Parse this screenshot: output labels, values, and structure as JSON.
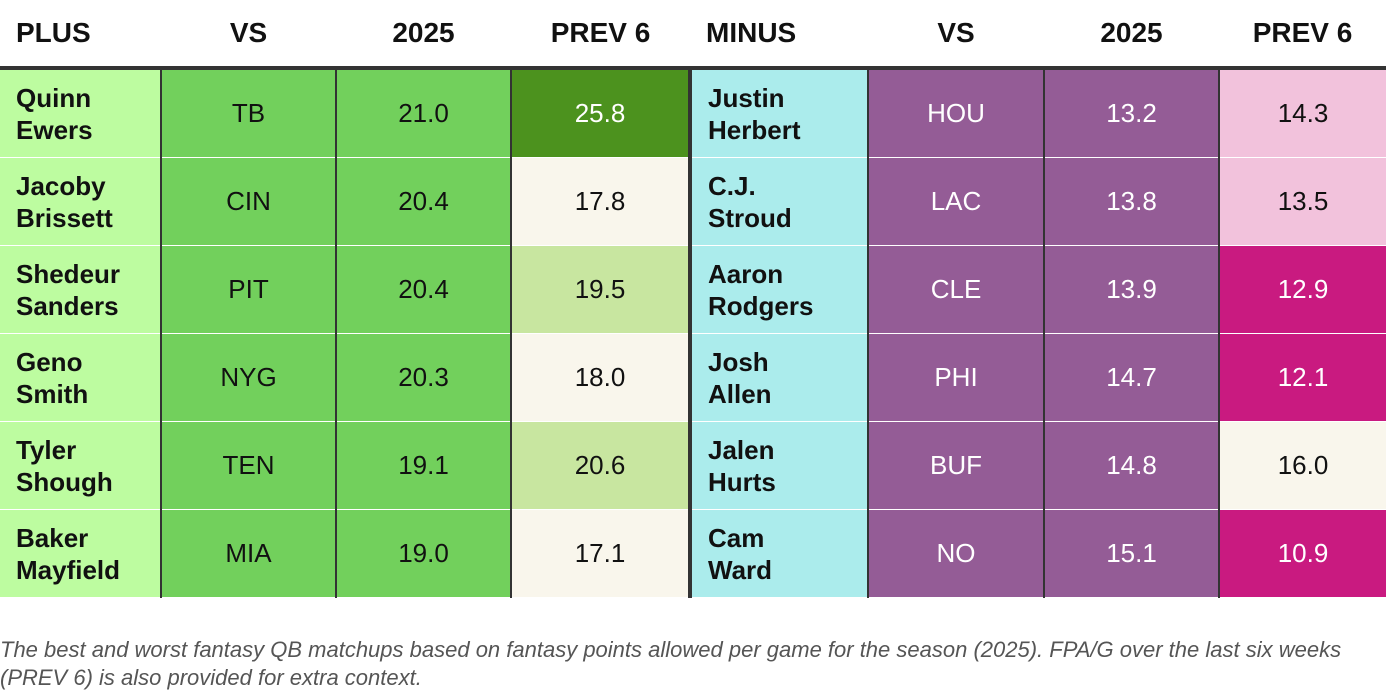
{
  "chart_data": {
    "type": "table",
    "headers": {
      "plus": [
        "PLUS",
        "VS",
        "2025",
        "PREV 6"
      ],
      "minus": [
        "MINUS",
        "VS",
        "2025",
        "PREV 6"
      ]
    },
    "rows": [
      {
        "plus": {
          "name_first": "Quinn",
          "name_last": "Ewers",
          "vs": "TB",
          "y2025": "21.0",
          "prev6": "25.8"
        },
        "minus": {
          "name_first": "Justin",
          "name_last": "Herbert",
          "vs": "HOU",
          "y2025": "13.2",
          "prev6": "14.3"
        }
      },
      {
        "plus": {
          "name_first": "Jacoby",
          "name_last": "Brissett",
          "vs": "CIN",
          "y2025": "20.4",
          "prev6": "17.8"
        },
        "minus": {
          "name_first": "C.J.",
          "name_last": "Stroud",
          "vs": "LAC",
          "y2025": "13.8",
          "prev6": "13.5"
        }
      },
      {
        "plus": {
          "name_first": "Shedeur",
          "name_last": "Sanders",
          "vs": "PIT",
          "y2025": "20.4",
          "prev6": "19.5"
        },
        "minus": {
          "name_first": "Aaron",
          "name_last": "Rodgers",
          "vs": "CLE",
          "y2025": "13.9",
          "prev6": "12.9"
        }
      },
      {
        "plus": {
          "name_first": "Geno",
          "name_last": "Smith",
          "vs": "NYG",
          "y2025": "20.3",
          "prev6": "18.0"
        },
        "minus": {
          "name_first": "Josh",
          "name_last": "Allen",
          "vs": "PHI",
          "y2025": "14.7",
          "prev6": "12.1"
        }
      },
      {
        "plus": {
          "name_first": "Tyler",
          "name_last": "Shough",
          "vs": "TEN",
          "y2025": "19.1",
          "prev6": "20.6"
        },
        "minus": {
          "name_first": "Jalen",
          "name_last": "Hurts",
          "vs": "BUF",
          "y2025": "14.8",
          "prev6": "16.0"
        }
      },
      {
        "plus": {
          "name_first": "Baker",
          "name_last": "Mayfield",
          "vs": "MIA",
          "y2025": "19.0",
          "prev6": "17.1"
        },
        "minus": {
          "name_first": "Cam",
          "name_last": "Ward",
          "vs": "NO",
          "y2025": "15.1",
          "prev6": "10.9"
        }
      }
    ],
    "caption": "The best and worst fantasy QB matchups based on fantasy points allowed per game for the season (2025). FPA/G over the last six weeks (PREV 6) is also provided for extra context.",
    "colors": {
      "plus_name_bg": "#bdfca0",
      "plus_col_bg": "#72d05c",
      "minus_name_bg": "#abecec",
      "minus_col_bg": "#945c96",
      "plus_prev6_high": "#4c921e",
      "plus_prev6_mid": "#c8e6a0",
      "neutral": "#f9f6ec",
      "minus_prev6_light": "#f2c2dc",
      "minus_prev6_dark": "#c91a80"
    }
  }
}
